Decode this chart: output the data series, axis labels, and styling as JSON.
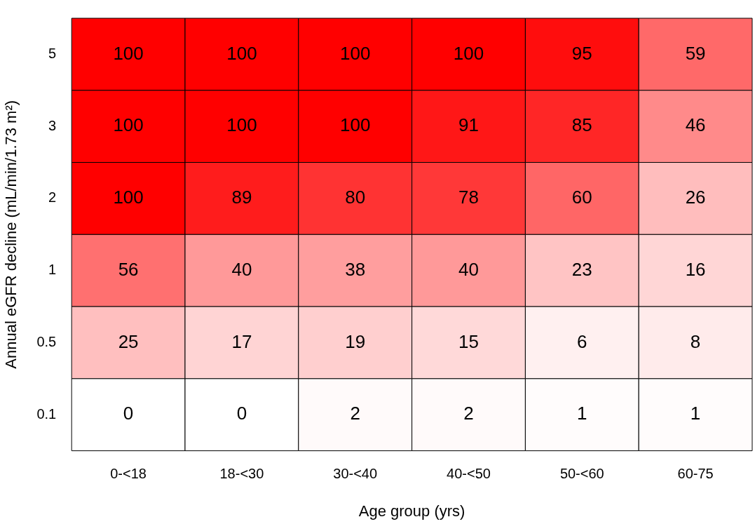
{
  "chart_data": {
    "type": "heatmap",
    "xlabel": "Age group (yrs)",
    "ylabel": "Annual eGFR decline (mL/min/1.73 m²)",
    "color": "#ff0000",
    "data_labels": true,
    "categories": [
      "0-<18",
      "18-<30",
      "30-<40",
      "40-<50",
      "50-<60",
      "60-75"
    ],
    "y_categories": [
      "5",
      "3",
      "2",
      "1",
      "0.5",
      "0.1"
    ],
    "cells": [
      [
        100,
        100,
        100,
        100,
        95,
        59
      ],
      [
        100,
        100,
        100,
        91,
        85,
        46
      ],
      [
        100,
        89,
        80,
        78,
        60,
        26
      ],
      [
        56,
        40,
        38,
        40,
        23,
        16
      ],
      [
        25,
        17,
        19,
        15,
        6,
        8
      ],
      [
        0,
        0,
        2,
        2,
        1,
        1
      ]
    ]
  }
}
